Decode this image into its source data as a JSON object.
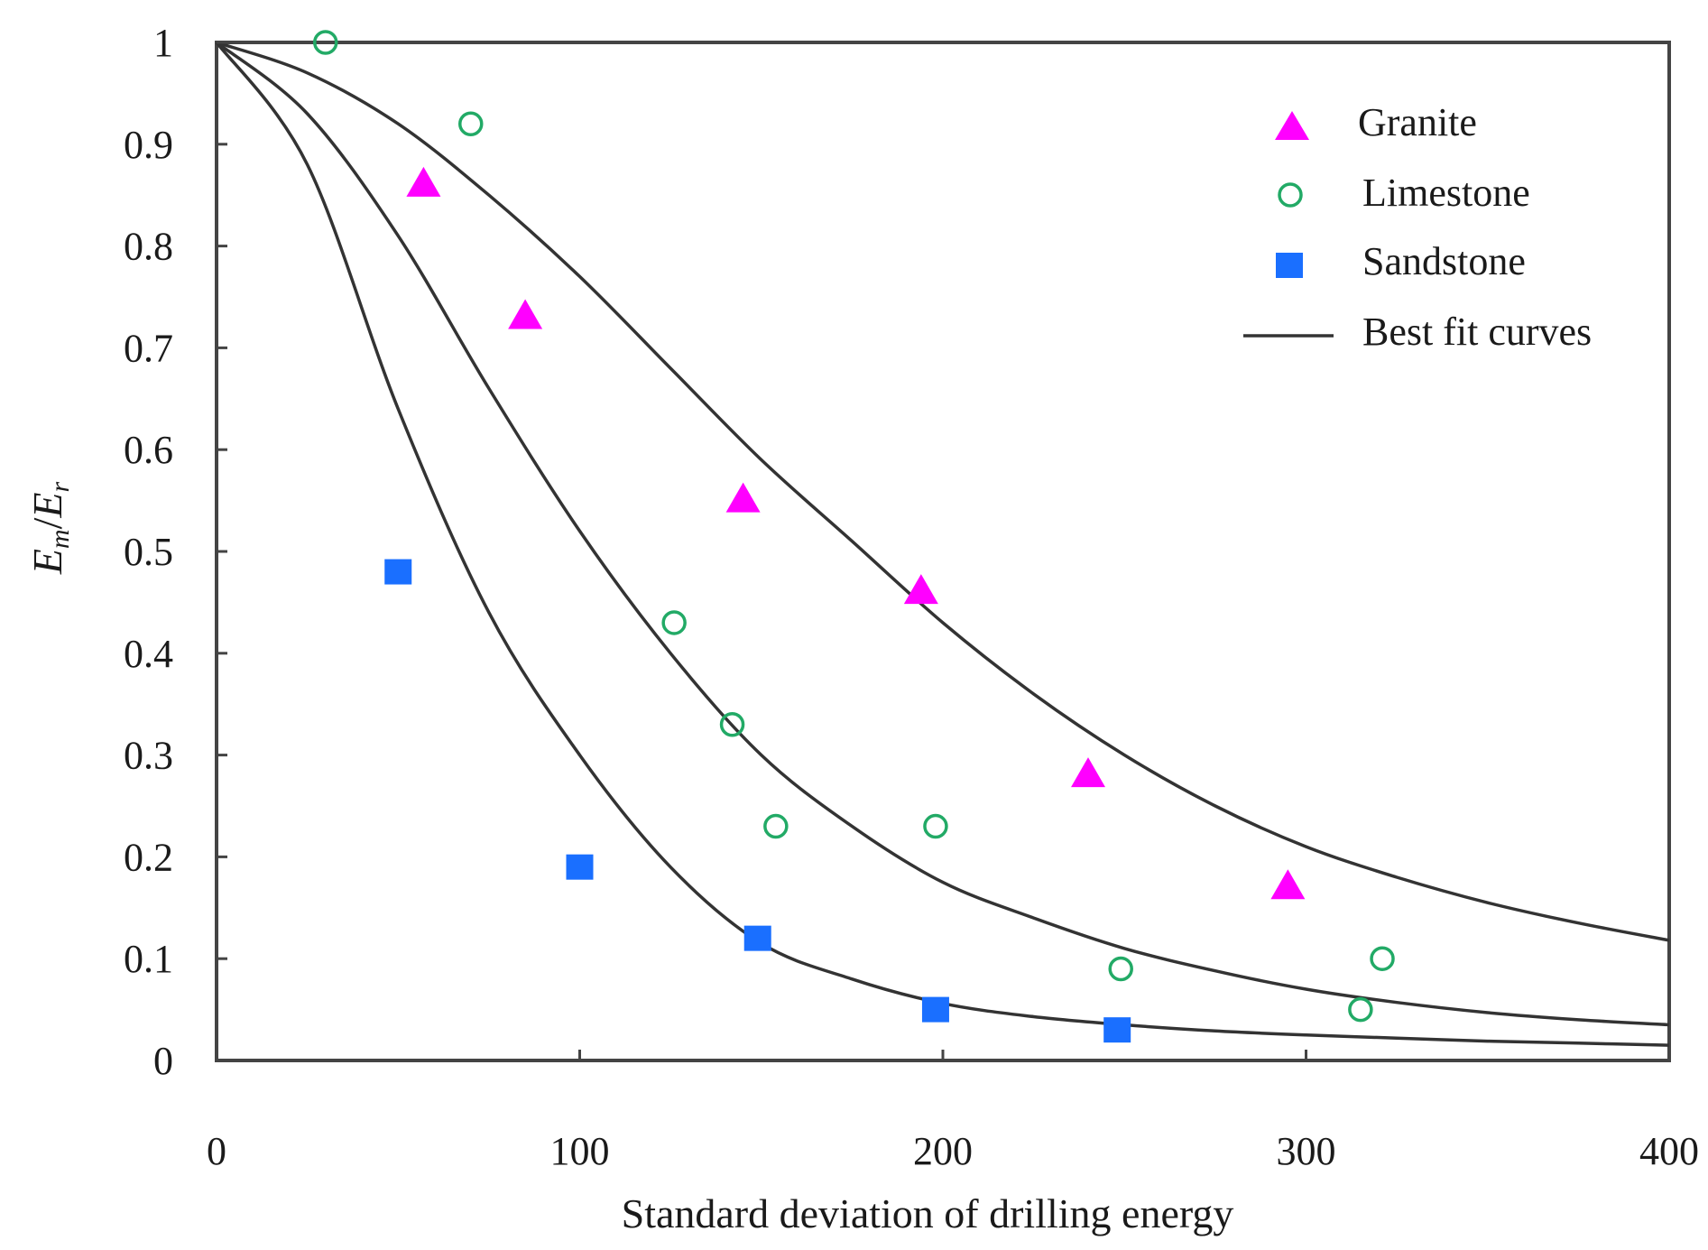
{
  "chart_data": {
    "type": "scatter",
    "xlabel": "Standard deviation of drilling energy",
    "ylabel": {
      "e1": "E",
      "s1": "m",
      "slash": "/",
      "e2": "E",
      "s2": "r"
    },
    "xlim": [
      0,
      400
    ],
    "ylim": [
      0,
      1
    ],
    "xticks": [
      0,
      100,
      200,
      300,
      400
    ],
    "yticks": [
      0,
      0.1,
      0.2,
      0.3,
      0.4,
      0.5,
      0.6,
      0.7,
      0.8,
      0.9,
      1
    ],
    "grid": false,
    "legend_position": "top-right",
    "series": [
      {
        "name": "Granite",
        "marker": "triangle",
        "color": "#ff00ff",
        "points": [
          [
            57,
            0.86
          ],
          [
            85,
            0.73
          ],
          [
            145,
            0.55
          ],
          [
            194,
            0.46
          ],
          [
            240,
            0.28
          ],
          [
            295,
            0.17
          ]
        ]
      },
      {
        "name": "Limestone",
        "marker": "open-circle",
        "color": "#22aa66",
        "points": [
          [
            30,
            1.0
          ],
          [
            70,
            0.92
          ],
          [
            126,
            0.43
          ],
          [
            142,
            0.33
          ],
          [
            154,
            0.23
          ],
          [
            198,
            0.23
          ],
          [
            249,
            0.09
          ],
          [
            315,
            0.05
          ],
          [
            321,
            0.1
          ]
        ]
      },
      {
        "name": "Sandstone",
        "marker": "square",
        "color": "#1a6fff",
        "points": [
          [
            50,
            0.48
          ],
          [
            100,
            0.19
          ],
          [
            149,
            0.12
          ],
          [
            198,
            0.05
          ],
          [
            248,
            0.03
          ]
        ]
      }
    ],
    "fit_curves": {
      "name": "Best fit curves",
      "color": "#333333",
      "curves": [
        {
          "points": [
            [
              0,
              1.0
            ],
            [
              25,
              0.97
            ],
            [
              50,
              0.92
            ],
            [
              75,
              0.85
            ],
            [
              100,
              0.77
            ],
            [
              125,
              0.68
            ],
            [
              150,
              0.59
            ],
            [
              175,
              0.51
            ],
            [
              200,
              0.43
            ],
            [
              225,
              0.36
            ],
            [
              250,
              0.3
            ],
            [
              275,
              0.25
            ],
            [
              300,
              0.21
            ],
            [
              325,
              0.18
            ],
            [
              350,
              0.155
            ],
            [
              375,
              0.135
            ],
            [
              400,
              0.118
            ]
          ]
        },
        {
          "points": [
            [
              0,
              1.0
            ],
            [
              25,
              0.93
            ],
            [
              50,
              0.81
            ],
            [
              75,
              0.66
            ],
            [
              100,
              0.52
            ],
            [
              125,
              0.4
            ],
            [
              150,
              0.3
            ],
            [
              175,
              0.23
            ],
            [
              200,
              0.175
            ],
            [
              225,
              0.14
            ],
            [
              250,
              0.11
            ],
            [
              275,
              0.088
            ],
            [
              300,
              0.07
            ],
            [
              325,
              0.057
            ],
            [
              350,
              0.047
            ],
            [
              375,
              0.04
            ],
            [
              400,
              0.035
            ]
          ]
        },
        {
          "points": [
            [
              0,
              1.0
            ],
            [
              25,
              0.88
            ],
            [
              50,
              0.64
            ],
            [
              75,
              0.44
            ],
            [
              100,
              0.3
            ],
            [
              125,
              0.19
            ],
            [
              150,
              0.115
            ],
            [
              175,
              0.08
            ],
            [
              200,
              0.056
            ],
            [
              225,
              0.043
            ],
            [
              250,
              0.035
            ],
            [
              275,
              0.029
            ],
            [
              300,
              0.025
            ],
            [
              325,
              0.022
            ],
            [
              350,
              0.019
            ],
            [
              375,
              0.017
            ],
            [
              400,
              0.015
            ]
          ]
        }
      ]
    }
  }
}
